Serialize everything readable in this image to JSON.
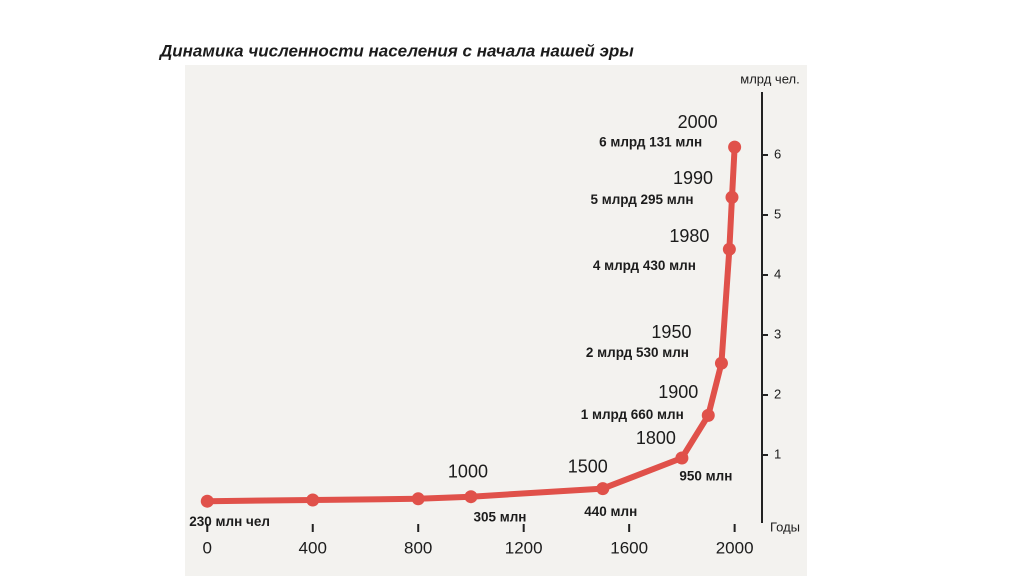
{
  "chart_data": {
    "type": "line",
    "title": "Динамика численности населения с начала нашей эры",
    "y_label": "млрд чел.",
    "x_label": "Годы",
    "x": [
      0,
      400,
      800,
      1000,
      1500,
      1800,
      1900,
      1950,
      1980,
      1990,
      2000
    ],
    "values": [
      0.23,
      0.25,
      0.27,
      0.305,
      0.44,
      0.95,
      1.66,
      2.53,
      4.43,
      5.295,
      6.131
    ],
    "value_labels": [
      "230 млн чел",
      null,
      null,
      "305 млн",
      "440 млн",
      "950 млн",
      "1 млрд 660 млн",
      "2 млрд 530 млн",
      "4 млрд 430 млн",
      "5 млрд 295 млн",
      "6 млрд 131 млн"
    ],
    "color": "#e0514a",
    "xlim": [
      -20,
      2100
    ],
    "xticks": [
      0,
      400,
      800,
      1200,
      1600,
      2000
    ],
    "ylim": [
      0,
      7.2
    ],
    "yticks": [
      1,
      2,
      3,
      4,
      5,
      6
    ]
  }
}
